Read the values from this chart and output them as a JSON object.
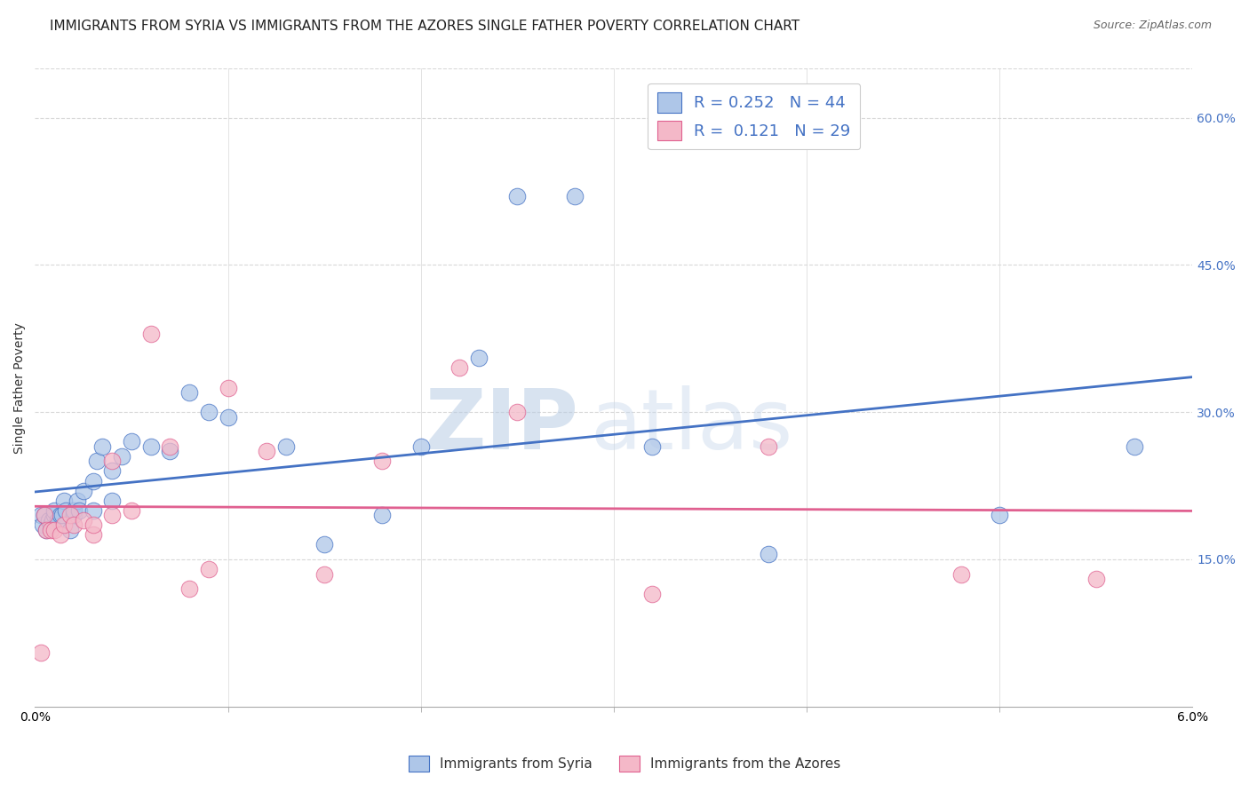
{
  "title": "IMMIGRANTS FROM SYRIA VS IMMIGRANTS FROM THE AZORES SINGLE FATHER POVERTY CORRELATION CHART",
  "source": "Source: ZipAtlas.com",
  "ylabel": "Single Father Poverty",
  "y_tick_vals": [
    0.15,
    0.3,
    0.45,
    0.6
  ],
  "x_range": [
    0.0,
    0.06
  ],
  "y_range": [
    0.0,
    0.65
  ],
  "r1": 0.252,
  "n1": 44,
  "r2": 0.121,
  "n2": 29,
  "color_syria": "#aec6e8",
  "color_azores": "#f4b8c8",
  "color_line_syria": "#4472c4",
  "color_line_azores": "#e06090",
  "color_tick_right": "#4472c4",
  "color_r_values": "#4472c4",
  "syria_x": [
    0.0003,
    0.0004,
    0.0005,
    0.0006,
    0.0007,
    0.0008,
    0.0009,
    0.001,
    0.001,
    0.0012,
    0.0013,
    0.0014,
    0.0015,
    0.0016,
    0.0018,
    0.002,
    0.002,
    0.0022,
    0.0023,
    0.0025,
    0.003,
    0.003,
    0.0032,
    0.0035,
    0.004,
    0.004,
    0.0045,
    0.005,
    0.006,
    0.007,
    0.008,
    0.009,
    0.01,
    0.013,
    0.015,
    0.018,
    0.02,
    0.023,
    0.025,
    0.028,
    0.032,
    0.038,
    0.05,
    0.057
  ],
  "syria_y": [
    0.195,
    0.185,
    0.195,
    0.18,
    0.19,
    0.185,
    0.19,
    0.195,
    0.2,
    0.19,
    0.195,
    0.195,
    0.21,
    0.2,
    0.18,
    0.195,
    0.2,
    0.21,
    0.2,
    0.22,
    0.2,
    0.23,
    0.25,
    0.265,
    0.21,
    0.24,
    0.255,
    0.27,
    0.265,
    0.26,
    0.32,
    0.3,
    0.295,
    0.265,
    0.165,
    0.195,
    0.265,
    0.355,
    0.52,
    0.52,
    0.265,
    0.155,
    0.195,
    0.265
  ],
  "azores_x": [
    0.0003,
    0.0005,
    0.0006,
    0.0008,
    0.001,
    0.0013,
    0.0015,
    0.0018,
    0.002,
    0.0025,
    0.003,
    0.003,
    0.004,
    0.004,
    0.005,
    0.006,
    0.007,
    0.008,
    0.009,
    0.01,
    0.012,
    0.015,
    0.018,
    0.022,
    0.025,
    0.032,
    0.038,
    0.048,
    0.055
  ],
  "azores_y": [
    0.055,
    0.195,
    0.18,
    0.18,
    0.18,
    0.175,
    0.185,
    0.195,
    0.185,
    0.19,
    0.175,
    0.185,
    0.195,
    0.25,
    0.2,
    0.38,
    0.265,
    0.12,
    0.14,
    0.325,
    0.26,
    0.135,
    0.25,
    0.345,
    0.3,
    0.115,
    0.265,
    0.135,
    0.13
  ],
  "watermark_line1": "ZIP",
  "watermark_line2": "atlas",
  "background_color": "#ffffff",
  "grid_color": "#d8d8d8",
  "title_fontsize": 11,
  "axis_label_fontsize": 10,
  "tick_fontsize": 10,
  "legend_fontsize": 13
}
